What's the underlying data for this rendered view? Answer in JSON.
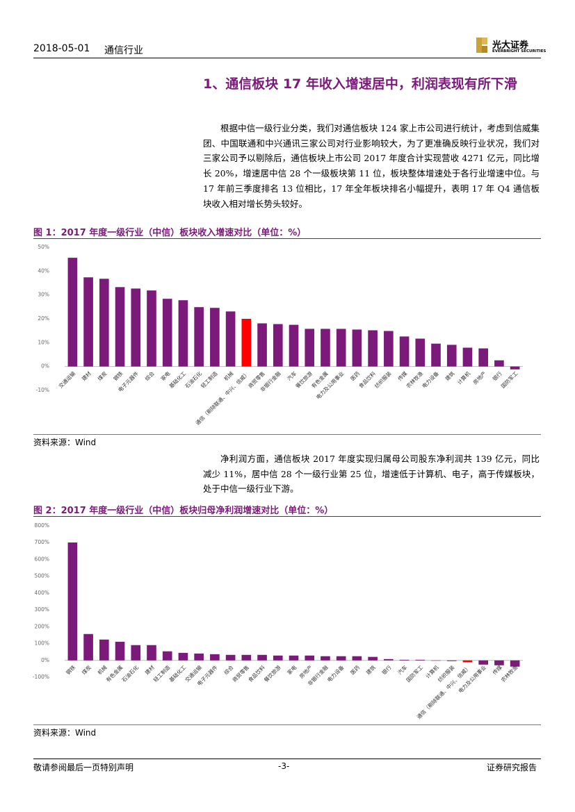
{
  "header": {
    "date": "2018-05-01",
    "industry": "通信行业",
    "logo_name": "光大证券",
    "logo_english": "EVERBRIGHT SECURITIES"
  },
  "heading": "1、通信板块 17 年收入增速居中，利润表现有所下滑",
  "paragraphs": [
    "根据中信一级行业分类，我们对通信板块 124 家上市公司进行统计，考虑到信威集团、中国联通和中兴通讯三家公司对行业影响较大，为了更准确反映行业状况，我们对三家公司予以剔除后，通信板块上市公司 2017 年度合计实现营收 4271 亿元，同比增长 20%，增速居中信 28 个一级板块第 11 位，板块整体增速处于各行业增速中位。与 17 年前三季度排名 13 位相比，17 年全年板块排名小幅提升，表明 17 年 Q4 通信板块收入相对增长势头较好。",
    "净利润方面，通信板块 2017 年度实现归属母公司股东净利润共 139 亿元，同比减少 11%，居中信 28 个一级行业第 25 位，增速低于计算机、电子，高于传媒板块，处于中信一级行业下游。"
  ],
  "chart_data": [
    {
      "type": "bar",
      "title": "图 1：2017 年度一级行业（中信）板块收入增速对比（单位：%）",
      "source": "资料来源：Wind",
      "categories": [
        "交通运输",
        "建材",
        "煤炭",
        "钢铁",
        "电子元器件",
        "综合",
        "家电",
        "基础化工",
        "石油石化",
        "轻工制造",
        "机械",
        "通信（剔除联通、中兴、信威）",
        "商贸零售",
        "非银行金融",
        "汽车",
        "餐饮旅游",
        "有色金属",
        "电力及公用事业",
        "医药",
        "食品饮料",
        "纺织服装",
        "传媒",
        "农林牧渔",
        "电力设备",
        "建筑",
        "计算机",
        "房地产",
        "银行",
        "国防军工"
      ],
      "values": [
        45.6,
        37.4,
        36.8,
        33.3,
        32.7,
        31.9,
        28.4,
        27.8,
        24.9,
        24.6,
        23.1,
        20,
        18.1,
        17.8,
        17.5,
        15.8,
        15.8,
        15.8,
        15.5,
        15.2,
        14.9,
        12.6,
        11.7,
        9.6,
        9.1,
        7.9,
        7.6,
        2.6,
        -1.2
      ],
      "colors": [
        "#7b1a7b",
        "#7b1a7b",
        "#7b1a7b",
        "#7b1a7b",
        "#7b1a7b",
        "#7b1a7b",
        "#7b1a7b",
        "#7b1a7b",
        "#7b1a7b",
        "#7b1a7b",
        "#7b1a7b",
        "#ff0000",
        "#7b1a7b",
        "#7b1a7b",
        "#7b1a7b",
        "#7b1a7b",
        "#7b1a7b",
        "#7b1a7b",
        "#7b1a7b",
        "#7b1a7b",
        "#7b1a7b",
        "#7b1a7b",
        "#7b1a7b",
        "#7b1a7b",
        "#7b1a7b",
        "#7b1a7b",
        "#7b1a7b",
        "#7b1a7b",
        "#7b1a7b"
      ],
      "ylim": [
        -10,
        50
      ],
      "yticks": [
        {
          "value": -10,
          "label": "-10%"
        },
        {
          "value": 0,
          "label": "0%"
        },
        {
          "value": 10,
          "label": "10%"
        },
        {
          "value": 20,
          "label": "20%"
        },
        {
          "value": 30,
          "label": "30%"
        },
        {
          "value": 40,
          "label": "40%"
        },
        {
          "value": 50,
          "label": "50%"
        }
      ],
      "grid": false
    },
    {
      "type": "bar",
      "title": "图 2：2017 年度一级行业（中信）板块归母净利润增速对比（单位：%）",
      "source": "资料来源：Wind",
      "categories": [
        "钢铁",
        "煤炭",
        "机械",
        "有色金属",
        "石油石化",
        "建材",
        "轻工制造",
        "基础化工",
        "交通运输",
        "电子元器件",
        "综合",
        "商贸零售",
        "食品饮料",
        "餐饮旅游",
        "家电",
        "房地产",
        "非银行金融",
        "电力设备",
        "医药",
        "建筑",
        "银行",
        "汽车",
        "国防军工",
        "计算机",
        "纺织服装",
        "通信（剔除联通、中兴、信威）",
        "电力及公用事业",
        "传媒",
        "农林牧渔"
      ],
      "values": [
        701,
        157,
        124,
        111,
        91,
        91,
        54,
        45,
        41,
        37,
        33,
        33,
        33,
        29,
        29,
        29,
        25,
        25,
        25,
        21,
        8,
        4,
        4,
        -2,
        -4,
        -11,
        -25,
        -29,
        -37
      ],
      "colors": [
        "#7b1a7b",
        "#7b1a7b",
        "#7b1a7b",
        "#7b1a7b",
        "#7b1a7b",
        "#7b1a7b",
        "#7b1a7b",
        "#7b1a7b",
        "#7b1a7b",
        "#7b1a7b",
        "#7b1a7b",
        "#7b1a7b",
        "#7b1a7b",
        "#7b1a7b",
        "#7b1a7b",
        "#7b1a7b",
        "#7b1a7b",
        "#7b1a7b",
        "#7b1a7b",
        "#7b1a7b",
        "#7b1a7b",
        "#7b1a7b",
        "#7b1a7b",
        "#7b1a7b",
        "#7b1a7b",
        "#ff0000",
        "#7b1a7b",
        "#7b1a7b",
        "#7b1a7b"
      ],
      "ylim": [
        -100,
        800
      ],
      "yticks": [
        {
          "value": -100,
          "label": "-100%"
        },
        {
          "value": 0,
          "label": "0%"
        },
        {
          "value": 100,
          "label": "100%"
        },
        {
          "value": 200,
          "label": "200%"
        },
        {
          "value": 300,
          "label": "300%"
        },
        {
          "value": 400,
          "label": "400%"
        },
        {
          "value": 500,
          "label": "500%"
        },
        {
          "value": 600,
          "label": "600%"
        },
        {
          "value": 700,
          "label": "700%"
        },
        {
          "value": 800,
          "label": "800%"
        }
      ],
      "grid": false
    }
  ],
  "footer": {
    "disclaimer": "敬请参阅最后一页特别声明",
    "page": "-3-",
    "report_type": "证券研究报告"
  }
}
